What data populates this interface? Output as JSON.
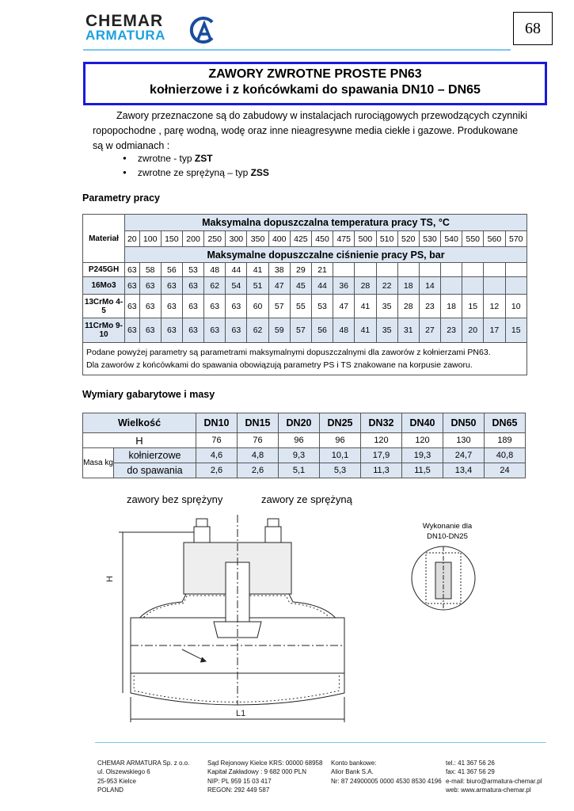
{
  "header": {
    "logo_line1": "CHEMAR",
    "logo_line2": "ARMATURA",
    "page_number": "68",
    "accent": "#1da1e0"
  },
  "title": {
    "line1": "ZAWORY  ZWROTNE  PROSTE  PN63",
    "line2": "kołnierzowe  i  z  końcówkami do spawania   DN10 – DN65"
  },
  "intro": {
    "text1": "Zawory  przeznaczone są do zabudowy w instalacjach  rurociągowych przewodzących czynniki",
    "text2": "ropopochodne , parę wodną, wodę oraz inne nieagresywne  media ciekłe i gazowe. Produkowane",
    "text3": "są w odmianach :",
    "bullets": [
      {
        "text": "zwrotne  - typ ",
        "type": "ZST"
      },
      {
        "text": "zwrotne ze sprężyną – typ ",
        "type": "ZSS"
      }
    ]
  },
  "params": {
    "heading": "Parametry pracy",
    "material_label": "Materiał",
    "temp_heading": "Maksymalna dopuszczalna temperatura pracy  TS, °C",
    "temps": [
      "20",
      "100",
      "150",
      "200",
      "250",
      "300",
      "350",
      "400",
      "425",
      "450",
      "475",
      "500",
      "510",
      "520",
      "530",
      "540",
      "550",
      "560",
      "570"
    ],
    "pressure_heading": "Maksymalne dopuszczalne ciśnienie pracy  PS, bar",
    "rows": [
      {
        "material": "P245GH",
        "values": [
          "63",
          "58",
          "56",
          "53",
          "48",
          "44",
          "41",
          "38",
          "29",
          "21",
          "",
          "",
          "",
          "",
          "",
          "",
          "",
          "",
          ""
        ]
      },
      {
        "material": "16Mo3",
        "values": [
          "63",
          "63",
          "63",
          "63",
          "62",
          "54",
          "51",
          "47",
          "45",
          "44",
          "36",
          "28",
          "22",
          "18",
          "14",
          "",
          "",
          "",
          ""
        ]
      },
      {
        "material": "13CrMo 4-5",
        "values": [
          "63",
          "63",
          "63",
          "63",
          "63",
          "63",
          "60",
          "57",
          "55",
          "53",
          "47",
          "41",
          "35",
          "28",
          "23",
          "18",
          "15",
          "12",
          "10"
        ]
      },
      {
        "material": "11CrMo 9-10",
        "values": [
          "63",
          "63",
          "63",
          "63",
          "63",
          "63",
          "62",
          "59",
          "57",
          "56",
          "48",
          "41",
          "35",
          "31",
          "27",
          "23",
          "20",
          "17",
          "15"
        ]
      }
    ],
    "note1": "Podane powyżej parametry są parametrami maksymalnymi dopuszczalnymi dla zaworów z kołnierzami PN63.",
    "note2": "Dla zaworów z końcówkami do spawania obowiązują parametry PS i TS znakowane na korpusie zaworu."
  },
  "dims": {
    "heading": "Wymiary gabarytowe i  masy",
    "size_label": "Wielkość",
    "sizes": [
      "DN10",
      "DN15",
      "DN20",
      "DN25",
      "DN32",
      "DN40",
      "DN50",
      "DN65"
    ],
    "h_label": "H",
    "h": [
      "76",
      "76",
      "96",
      "96",
      "120",
      "120",
      "130",
      "189"
    ],
    "mass_label": "Masa kg",
    "flanged_label": "kołnierzowe",
    "flanged": [
      "4,6",
      "4,8",
      "9,3",
      "10,1",
      "17,9",
      "19,3",
      "24,7",
      "40,8"
    ],
    "weld_label": "do spawania",
    "weld": [
      "2,6",
      "2,6",
      "5,1",
      "5,3",
      "11,3",
      "11,5",
      "13,4",
      "24"
    ]
  },
  "drawing": {
    "label_left": "zawory bez sprężyny",
    "label_right": "zawory ze sprężyną",
    "detail_caption": "Wykonanie dla DN10-DN25",
    "dim_h": "H",
    "dim_l": "L1"
  },
  "footer": {
    "col1": [
      "CHEMAR ARMATURA Sp. z o.o.",
      "ul. Olszewskiego 6",
      "25-953 Kielce",
      "POLAND"
    ],
    "col2": [
      "Sąd Rejonowy Kielce KRS: 00000 68958",
      "Kapitał  Zakładowy : 9 682 000 PLN",
      "NIP: PL 959 15 03 417",
      "REGON: 292 449 587"
    ],
    "col3": [
      "Konto bankowe:",
      "Alior Bank S.A.",
      "Nr: 87 24900005 0000 4530 8530 4196"
    ],
    "col4": [
      "tel.: 41 367 56 26",
      "fax: 41 367 56 29",
      "e-mail: biuro@armatura-chemar.pl",
      "web: www.armatura-chemar.pl"
    ]
  }
}
